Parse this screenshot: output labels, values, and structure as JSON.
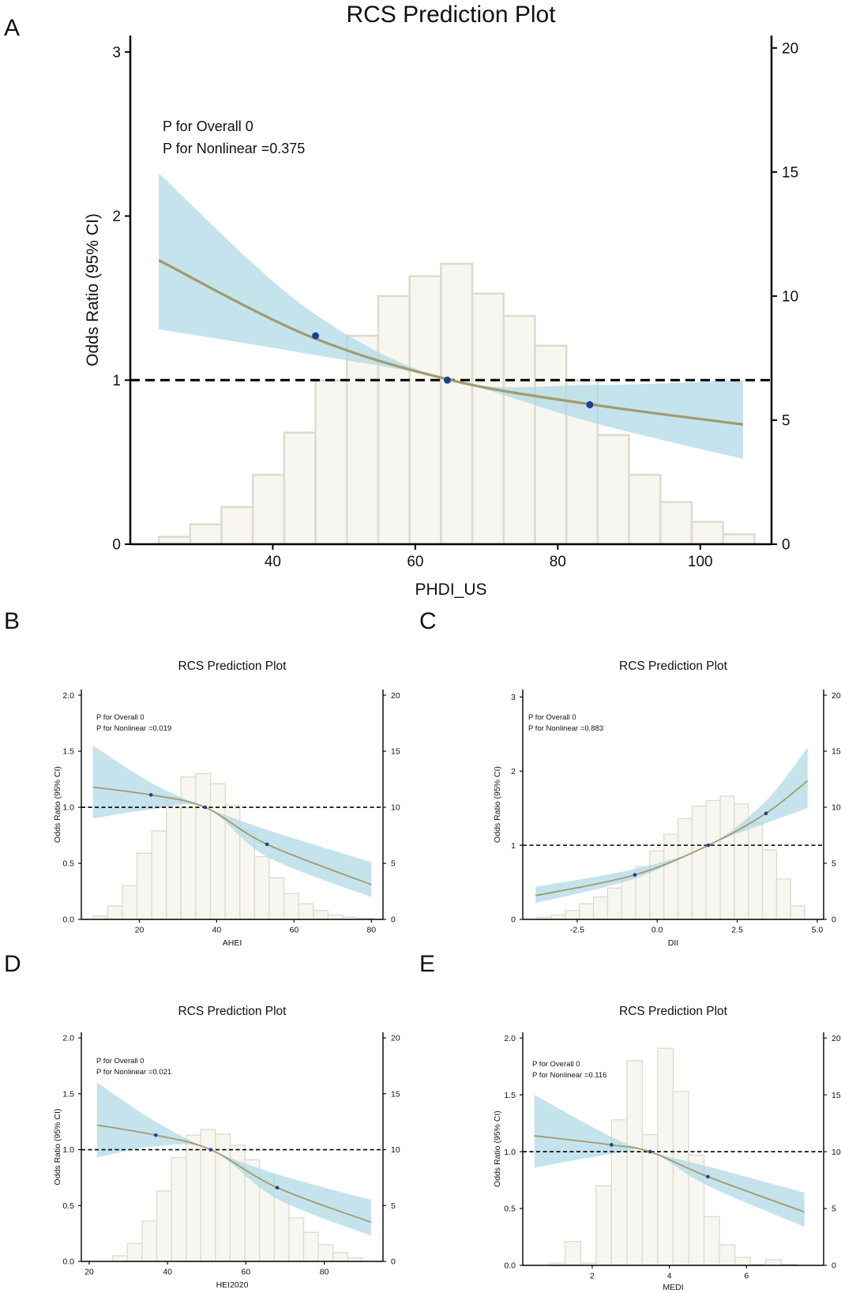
{
  "figure": {
    "panel_labels": [
      "A",
      "B",
      "C",
      "D",
      "E"
    ]
  },
  "colors": {
    "band": "#add8e6",
    "curve": "#a29b6b",
    "marker": "#1f3d99",
    "bar_fill": "#f7f6f1",
    "bar_stroke": "#dedbc9",
    "axis": "#000000"
  },
  "chart_data": [
    {
      "panel": "A",
      "type": "line",
      "title": "RCS Prediction Plot",
      "xlabel": "PHDI_US",
      "ylabel": "Odds Ratio (95% CI)",
      "xlim": [
        20,
        110
      ],
      "ylim": [
        0,
        3.1
      ],
      "y2lim": [
        0,
        20.5
      ],
      "xticks": [
        40,
        60,
        80,
        100
      ],
      "yticks": [
        0,
        1,
        2,
        3
      ],
      "y2ticks": [
        0,
        5,
        10,
        15,
        20
      ],
      "reference_y": 1,
      "annotations": [
        "P for Overall 0",
        "P for Nonlinear =0.375"
      ],
      "series": [
        {
          "name": "OR estimate",
          "x": [
            24,
            45,
            65,
            85,
            106
          ],
          "y": [
            1.73,
            1.27,
            1.0,
            0.85,
            0.73
          ]
        },
        {
          "name": "95% CI lower",
          "x": [
            24,
            45,
            65,
            85,
            106
          ],
          "y": [
            1.31,
            1.16,
            1.0,
            0.74,
            0.52
          ]
        },
        {
          "name": "95% CI upper",
          "x": [
            24,
            45,
            65,
            85,
            106
          ],
          "y": [
            2.26,
            1.43,
            1.0,
            0.97,
            1.0
          ]
        }
      ],
      "markers": {
        "x": [
          46,
          64.5,
          84.5
        ],
        "y": [
          1.27,
          1.0,
          0.85
        ]
      },
      "histogram": {
        "bin_width": 4.4,
        "starts": [
          24,
          28.4,
          32.8,
          37.2,
          41.6,
          46,
          50.4,
          54.8,
          59.2,
          63.6,
          68,
          72.4,
          76.8,
          81.2,
          85.6,
          90,
          94.4,
          98.8,
          103.2
        ],
        "counts": [
          0.3,
          0.8,
          1.5,
          2.8,
          4.5,
          6.6,
          8.4,
          10.0,
          10.8,
          11.3,
          10.1,
          9.2,
          8.0,
          6.6,
          4.4,
          2.8,
          1.7,
          0.9,
          0.4
        ]
      }
    },
    {
      "panel": "B",
      "type": "line",
      "title": "RCS Prediction Plot",
      "xlabel": "AHEI",
      "ylabel": "Odds Ratio (95% CI)",
      "xlim": [
        5,
        83
      ],
      "ylim": [
        0,
        2.05
      ],
      "y2lim": [
        0,
        20.5
      ],
      "xticks": [
        20,
        40,
        60,
        80
      ],
      "yticks": [
        0.0,
        0.5,
        1.0,
        1.5,
        2.0
      ],
      "y2ticks": [
        0,
        5,
        10,
        15,
        20
      ],
      "reference_y": 1,
      "annotations": [
        "P for Overall 0",
        "P for Nonlinear =0.019"
      ],
      "series": [
        {
          "name": "OR estimate",
          "x": [
            8,
            23,
            37,
            53,
            80
          ],
          "y": [
            1.18,
            1.11,
            1.0,
            0.67,
            0.31
          ]
        },
        {
          "name": "95% CI lower",
          "x": [
            8,
            23,
            37,
            53,
            80
          ],
          "y": [
            0.9,
            0.98,
            1.0,
            0.56,
            0.2
          ]
        },
        {
          "name": "95% CI upper",
          "x": [
            8,
            23,
            37,
            53,
            80
          ],
          "y": [
            1.55,
            1.22,
            1.0,
            0.8,
            0.51
          ]
        }
      ],
      "markers": {
        "x": [
          23,
          37,
          53
        ],
        "y": [
          1.11,
          1.0,
          0.67
        ]
      },
      "histogram": {
        "bin_width": 3.8,
        "starts": [
          8,
          11.8,
          15.6,
          19.4,
          23.2,
          27,
          30.8,
          34.6,
          38.4,
          42.2,
          46,
          49.8,
          53.6,
          57.4,
          61.2,
          65,
          68.8,
          72.6,
          76.4
        ],
        "counts": [
          0.3,
          1.2,
          3.0,
          5.9,
          7.9,
          10.9,
          12.7,
          13.0,
          12.1,
          10.2,
          7.9,
          5.6,
          3.7,
          2.3,
          1.4,
          0.8,
          0.4,
          0.2,
          0.1
        ]
      }
    },
    {
      "panel": "C",
      "type": "line",
      "title": "RCS Prediction Plot",
      "xlabel": "DII",
      "ylabel": "Odds Ratio (95% CI)",
      "xlim": [
        -4.2,
        5.2
      ],
      "ylim": [
        0,
        3.1
      ],
      "y2lim": [
        0,
        20.5
      ],
      "xticks": [
        -2.5,
        0.0,
        2.5,
        5.0
      ],
      "yticks": [
        0,
        1,
        2,
        3
      ],
      "y2ticks": [
        0,
        5,
        10,
        15,
        20
      ],
      "reference_y": 1,
      "annotations": [
        "P for Overall 0",
        "P for Nonlinear =0.883"
      ],
      "series": [
        {
          "name": "OR estimate",
          "x": [
            -3.8,
            -0.7,
            1.6,
            3.4,
            4.7
          ],
          "y": [
            0.32,
            0.6,
            1.0,
            1.43,
            1.87
          ]
        },
        {
          "name": "95% CI lower",
          "x": [
            -3.8,
            -0.7,
            1.6,
            3.4,
            4.7
          ],
          "y": [
            0.22,
            0.55,
            1.0,
            1.3,
            1.5
          ]
        },
        {
          "name": "95% CI upper",
          "x": [
            -3.8,
            -0.7,
            1.6,
            3.4,
            4.7
          ],
          "y": [
            0.44,
            0.68,
            1.0,
            1.6,
            2.32
          ]
        }
      ],
      "markers": {
        "x": [
          -0.7,
          1.6,
          3.4
        ],
        "y": [
          0.6,
          1.0,
          1.43
        ]
      },
      "histogram": {
        "bin_width": 0.44,
        "starts": [
          -3.75,
          -3.31,
          -2.87,
          -2.43,
          -1.99,
          -1.55,
          -1.11,
          -0.67,
          -0.23,
          0.21,
          0.65,
          1.09,
          1.53,
          1.97,
          2.41,
          2.85,
          3.29,
          3.73,
          4.17
        ],
        "counts": [
          0.2,
          0.4,
          0.8,
          1.4,
          2.0,
          2.8,
          3.7,
          4.7,
          6.1,
          7.6,
          9.0,
          10.1,
          10.6,
          11.0,
          10.3,
          8.6,
          6.2,
          3.6,
          1.2
        ]
      }
    },
    {
      "panel": "D",
      "type": "line",
      "title": "RCS Prediction Plot",
      "xlabel": "HEI2020",
      "ylabel": "Odds Ratio (95% CI)",
      "xlim": [
        18,
        95
      ],
      "ylim": [
        0,
        2.05
      ],
      "y2lim": [
        0,
        20.5
      ],
      "xticks": [
        20,
        40,
        60,
        80
      ],
      "yticks": [
        0.0,
        0.5,
        1.0,
        1.5,
        2.0
      ],
      "y2ticks": [
        0,
        5,
        10,
        15,
        20
      ],
      "reference_y": 1,
      "annotations": [
        "P for Overall 0",
        "P for Nonlinear =0.021"
      ],
      "series": [
        {
          "name": "OR estimate",
          "x": [
            22,
            37,
            51,
            68,
            92
          ],
          "y": [
            1.22,
            1.13,
            1.0,
            0.66,
            0.35
          ]
        },
        {
          "name": "95% CI lower",
          "x": [
            22,
            37,
            51,
            68,
            92
          ],
          "y": [
            0.93,
            1.03,
            1.0,
            0.56,
            0.23
          ]
        },
        {
          "name": "95% CI upper",
          "x": [
            22,
            37,
            51,
            68,
            92
          ],
          "y": [
            1.6,
            1.25,
            1.0,
            0.78,
            0.55
          ]
        }
      ],
      "markers": {
        "x": [
          37,
          51,
          68
        ],
        "y": [
          1.13,
          1.0,
          0.66
        ]
      },
      "histogram": {
        "bin_width": 3.75,
        "starts": [
          26,
          29.75,
          33.5,
          37.25,
          41,
          44.75,
          48.5,
          52.25,
          56,
          59.75,
          63.5,
          67.25,
          71,
          74.75,
          78.5,
          82.25,
          86
        ],
        "counts": [
          0.5,
          1.6,
          3.6,
          6.3,
          9.3,
          11.3,
          11.8,
          11.4,
          10.4,
          9.1,
          7.6,
          5.8,
          3.9,
          2.6,
          1.5,
          0.8,
          0.3
        ]
      }
    },
    {
      "panel": "E",
      "type": "line",
      "title": "RCS Prediction Plot",
      "xlabel": "MEDI",
      "ylabel": "Odds Ratio (95% CI)",
      "xlim": [
        0.2,
        8.0
      ],
      "ylim": [
        0,
        2.05
      ],
      "y2lim": [
        0,
        20.5
      ],
      "xticks": [
        2,
        4,
        6
      ],
      "yticks": [
        0.0,
        0.5,
        1.0,
        1.5,
        2.0
      ],
      "y2ticks": [
        0,
        5,
        10,
        15,
        20
      ],
      "reference_y": 1,
      "annotations": [
        "P for Overall 0",
        "P for Nonlinear =0.116"
      ],
      "series": [
        {
          "name": "OR estimate",
          "x": [
            0.5,
            2.5,
            3.5,
            5.0,
            7.5
          ],
          "y": [
            1.14,
            1.06,
            1.0,
            0.78,
            0.47
          ]
        },
        {
          "name": "95% CI lower",
          "x": [
            0.5,
            2.5,
            3.5,
            5.0,
            7.5
          ],
          "y": [
            0.86,
            0.98,
            1.0,
            0.7,
            0.34
          ]
        },
        {
          "name": "95% CI upper",
          "x": [
            0.5,
            2.5,
            3.5,
            5.0,
            7.5
          ],
          "y": [
            1.5,
            1.13,
            1.0,
            0.87,
            0.64
          ]
        }
      ],
      "markers": {
        "x": [
          2.5,
          3.5,
          5.0
        ],
        "y": [
          1.06,
          1.0,
          0.78
        ]
      },
      "histogram": {
        "bin_width": 0.4,
        "starts": [
          0.9,
          1.3,
          1.7,
          2.1,
          2.5,
          2.9,
          3.3,
          3.7,
          4.1,
          4.5,
          4.9,
          5.3,
          5.7,
          6.1,
          6.5,
          6.9
        ],
        "counts": [
          0.2,
          2.1,
          0.2,
          7.0,
          12.8,
          18.0,
          11.5,
          19.1,
          15.3,
          9.7,
          4.3,
          1.8,
          0.7,
          0.1,
          0.5,
          0.1
        ]
      }
    }
  ]
}
